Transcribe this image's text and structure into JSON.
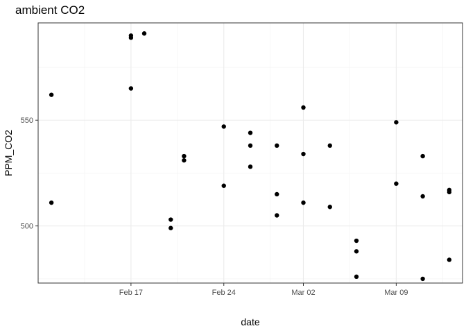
{
  "chart_data": {
    "type": "scatter",
    "title": "ambient CO2",
    "xlabel": "date",
    "ylabel": "PPM_CO2",
    "x_type": "date",
    "xlim": [
      "2025-02-10",
      "2025-03-14"
    ],
    "ylim": [
      473,
      596
    ],
    "x_ticks": [
      {
        "value": "2025-02-17",
        "label": "Feb 17"
      },
      {
        "value": "2025-02-24",
        "label": "Feb 24"
      },
      {
        "value": "2025-03-02",
        "label": "Mar 02"
      },
      {
        "value": "2025-03-09",
        "label": "Mar 09"
      }
    ],
    "y_ticks": [
      500,
      550
    ],
    "grid": true,
    "point_color": "#000000",
    "series": [
      {
        "points": [
          {
            "x": "2025-02-11",
            "y": 562
          },
          {
            "x": "2025-02-11",
            "y": 511
          },
          {
            "x": "2025-02-17",
            "y": 590
          },
          {
            "x": "2025-02-17",
            "y": 589
          },
          {
            "x": "2025-02-17",
            "y": 565
          },
          {
            "x": "2025-02-18",
            "y": 591
          },
          {
            "x": "2025-02-20",
            "y": 503
          },
          {
            "x": "2025-02-20",
            "y": 499
          },
          {
            "x": "2025-02-21",
            "y": 533
          },
          {
            "x": "2025-02-21",
            "y": 531
          },
          {
            "x": "2025-02-24",
            "y": 547
          },
          {
            "x": "2025-02-24",
            "y": 519
          },
          {
            "x": "2025-02-26",
            "y": 544
          },
          {
            "x": "2025-02-26",
            "y": 538
          },
          {
            "x": "2025-02-26",
            "y": 528
          },
          {
            "x": "2025-02-28",
            "y": 538
          },
          {
            "x": "2025-02-28",
            "y": 515
          },
          {
            "x": "2025-02-28",
            "y": 505
          },
          {
            "x": "2025-03-02",
            "y": 556
          },
          {
            "x": "2025-03-02",
            "y": 534
          },
          {
            "x": "2025-03-02",
            "y": 511
          },
          {
            "x": "2025-03-04",
            "y": 538
          },
          {
            "x": "2025-03-04",
            "y": 509
          },
          {
            "x": "2025-03-06",
            "y": 493
          },
          {
            "x": "2025-03-06",
            "y": 488
          },
          {
            "x": "2025-03-06",
            "y": 476
          },
          {
            "x": "2025-03-09",
            "y": 549
          },
          {
            "x": "2025-03-09",
            "y": 520
          },
          {
            "x": "2025-03-11",
            "y": 533
          },
          {
            "x": "2025-03-11",
            "y": 514
          },
          {
            "x": "2025-03-11",
            "y": 475
          },
          {
            "x": "2025-03-13",
            "y": 517
          },
          {
            "x": "2025-03-13",
            "y": 516
          },
          {
            "x": "2025-03-13",
            "y": 484
          }
        ]
      }
    ]
  }
}
